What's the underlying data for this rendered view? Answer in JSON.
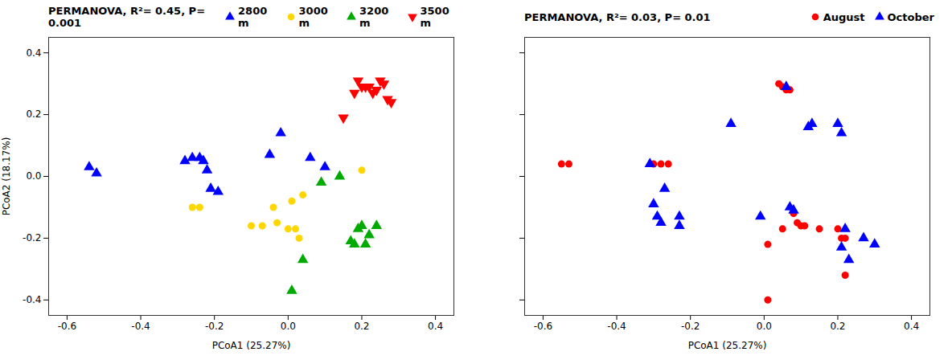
{
  "chart_data": [
    {
      "type": "scatter",
      "annotation": "PERMANOVA, R²= 0.45, P= 0.001",
      "xlabel": "PCoA1 (25.27%)",
      "ylabel": "PCoA2 (18.17%)",
      "xlim": [
        -0.65,
        0.45
      ],
      "ylim": [
        -0.45,
        0.45
      ],
      "xticks": [
        -0.6,
        -0.4,
        -0.2,
        {
          "value": 0,
          "label": "0.0"
        },
        0.2,
        0.4
      ],
      "yticks": [
        -0.4,
        -0.2,
        {
          "value": 0,
          "label": "0.0"
        },
        0.2,
        0.4
      ],
      "grid": false,
      "legend": "upper right",
      "series": [
        {
          "name": "2800 m",
          "color": "#0000FF",
          "marker": "triangle-up",
          "x": [
            -0.54,
            -0.52,
            -0.28,
            -0.26,
            -0.24,
            -0.23,
            -0.22,
            -0.21,
            -0.19,
            -0.05,
            -0.02,
            0.06,
            0.1
          ],
          "values": [
            0.03,
            0.01,
            0.05,
            0.06,
            0.06,
            0.05,
            0.02,
            -0.04,
            -0.05,
            0.07,
            0.14,
            0.06,
            0.03
          ]
        },
        {
          "name": "3000 m",
          "color": "#FFD700",
          "marker": "circle",
          "x": [
            -0.26,
            -0.24,
            -0.1,
            -0.07,
            -0.04,
            -0.03,
            0.0,
            0.01,
            0.02,
            0.03,
            0.04,
            0.2
          ],
          "values": [
            -0.1,
            -0.1,
            -0.16,
            -0.16,
            -0.1,
            -0.15,
            -0.17,
            -0.08,
            -0.17,
            -0.2,
            -0.06,
            0.02
          ]
        },
        {
          "name": "3200 m",
          "color": "#00AA00",
          "marker": "triangle-up",
          "x": [
            0.01,
            0.04,
            0.09,
            0.14,
            0.17,
            0.18,
            0.19,
            0.2,
            0.21,
            0.22,
            0.24
          ],
          "values": [
            -0.37,
            -0.27,
            -0.02,
            0.0,
            -0.21,
            -0.22,
            -0.17,
            -0.16,
            -0.22,
            -0.19,
            -0.16
          ]
        },
        {
          "name": "3500 m",
          "color": "#FF0000",
          "marker": "triangle-down",
          "x": [
            0.15,
            0.18,
            0.19,
            0.2,
            0.21,
            0.22,
            0.23,
            0.24,
            0.25,
            0.26,
            0.27,
            0.28
          ],
          "values": [
            0.19,
            0.27,
            0.31,
            0.29,
            0.29,
            0.29,
            0.27,
            0.28,
            0.31,
            0.3,
            0.25,
            0.24
          ]
        }
      ]
    },
    {
      "type": "scatter",
      "annotation": "PERMANOVA, R²= 0.03, P= 0.01",
      "xlabel": "PCoA1 (25.27%)",
      "xlim": [
        -0.65,
        0.45
      ],
      "ylim": [
        -0.45,
        0.45
      ],
      "xticks": [
        -0.6,
        -0.4,
        -0.2,
        {
          "value": 0,
          "label": "0.0"
        },
        0.2,
        0.4
      ],
      "yticks": [
        -0.4,
        -0.2,
        0,
        0.2,
        0.4
      ],
      "tick_labels": "x",
      "grid": false,
      "legend": "upper right",
      "series": [
        {
          "name": "August",
          "color": "#FF0000",
          "marker": "circle",
          "x": [
            -0.55,
            -0.53,
            -0.3,
            -0.28,
            -0.26,
            0.04,
            0.05,
            0.06,
            0.07,
            0.08,
            0.09,
            0.1,
            0.11,
            0.15,
            0.2,
            0.21,
            0.22,
            0.22,
            0.05,
            0.01,
            0.01
          ],
          "values": [
            0.04,
            0.04,
            0.04,
            0.04,
            0.04,
            0.3,
            0.29,
            0.28,
            0.28,
            -0.12,
            -0.15,
            -0.16,
            -0.16,
            -0.17,
            -0.17,
            -0.2,
            -0.2,
            -0.32,
            -0.17,
            -0.22,
            -0.4
          ]
        },
        {
          "name": "October",
          "color": "#0000FF",
          "marker": "triangle-up",
          "x": [
            -0.31,
            -0.3,
            -0.29,
            -0.28,
            -0.27,
            -0.23,
            -0.23,
            -0.09,
            -0.01,
            0.06,
            0.07,
            0.08,
            0.12,
            0.13,
            0.2,
            0.21,
            0.21,
            0.22,
            0.23,
            0.27,
            0.3
          ],
          "values": [
            0.04,
            -0.09,
            -0.13,
            -0.15,
            -0.04,
            -0.13,
            -0.16,
            0.17,
            -0.13,
            0.29,
            -0.1,
            -0.11,
            0.16,
            0.17,
            0.17,
            0.14,
            -0.23,
            -0.17,
            -0.27,
            -0.2,
            -0.22
          ]
        }
      ]
    }
  ]
}
